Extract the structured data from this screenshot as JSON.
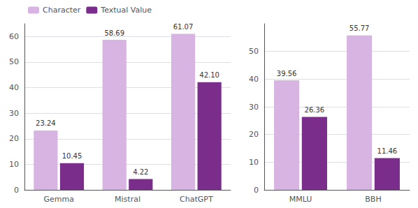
{
  "chart_data": [
    {
      "type": "bar",
      "categories": [
        "Gemma",
        "Mistral",
        "ChatGPT"
      ],
      "series": [
        {
          "name": "Character",
          "color": "#d8b4e2",
          "values": [
            23.24,
            58.69,
            61.07
          ]
        },
        {
          "name": "Textual Value",
          "color": "#7b2d8b",
          "values": [
            10.45,
            4.22,
            42.1
          ],
          "value_labels": [
            "10.45",
            "4.22",
            "42.10"
          ]
        }
      ],
      "ylim": [
        0,
        65
      ],
      "yticks": [
        0,
        10,
        20,
        30,
        40,
        50,
        60
      ],
      "grid": true,
      "legend": "upper left",
      "data_labels": true
    },
    {
      "type": "bar",
      "categories": [
        "MMLU",
        "BBH"
      ],
      "series": [
        {
          "color": "#d8b4e2",
          "values": [
            39.56,
            55.77
          ]
        },
        {
          "color": "#7b2d8b",
          "values": [
            26.36,
            11.46
          ]
        }
      ],
      "ylim": [
        0,
        60
      ],
      "yticks": [
        0,
        10,
        20,
        30,
        40,
        50
      ],
      "grid": true,
      "data_labels": true
    }
  ]
}
